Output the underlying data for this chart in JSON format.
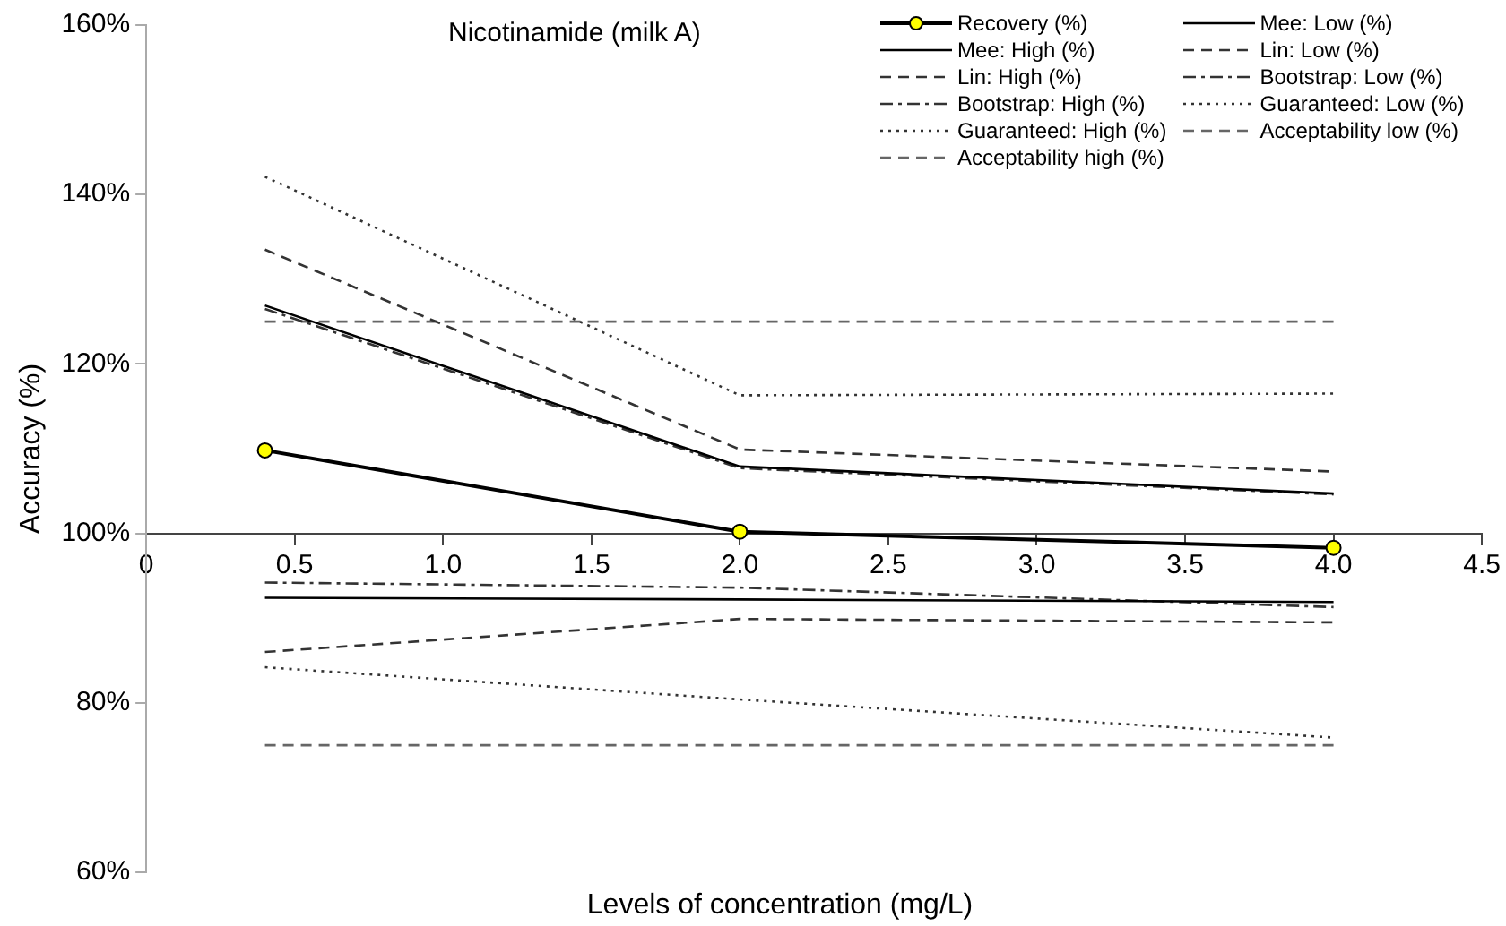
{
  "chart_data": {
    "type": "line",
    "title": "Nicotinamide (milk A)",
    "xlabel": "Levels of concentration (mg/L)",
    "ylabel": "Accuracy (%)",
    "x": [
      0.4,
      2.0,
      4.0
    ],
    "xlim": [
      0,
      4.5
    ],
    "xticks": [
      0,
      0.5,
      {
        "value": 1,
        "label": "1.0"
      },
      1.5,
      {
        "value": 2,
        "label": "2.0"
      },
      2.5,
      {
        "value": 3,
        "label": "3.0"
      },
      3.5,
      {
        "value": 4,
        "label": "4.0"
      },
      4.5
    ],
    "ylim": [
      60,
      160
    ],
    "yticks": [
      {
        "value": 60,
        "label": "60%"
      },
      {
        "value": 80,
        "label": "80%"
      },
      {
        "value": 100,
        "label": "100%"
      },
      {
        "value": 120,
        "label": "120%"
      },
      {
        "value": 140,
        "label": "140%"
      },
      {
        "value": 160,
        "label": "160%"
      }
    ],
    "grid": false,
    "legend": "top right",
    "series": [
      {
        "name": "Recovery (%)",
        "color": "#000000",
        "marker": "circle",
        "colors": [
          "#ffff00",
          "#ffff00",
          "#ffff00"
        ],
        "line_style": "solid",
        "values": [
          109.8,
          100.2,
          98.3
        ]
      },
      {
        "name": "Mee: Low (%)",
        "color": "#000000",
        "line_style": "solid",
        "values": [
          92.4,
          92.2,
          91.9
        ]
      },
      {
        "name": "Mee: High (%)",
        "color": "#000000",
        "line_style": "solid",
        "values": [
          126.9,
          107.9,
          104.7
        ]
      },
      {
        "name": "Lin: Low (%)",
        "color": "#333333",
        "line_style": "dashed",
        "values": [
          86.0,
          89.9,
          89.5
        ]
      },
      {
        "name": "Lin: High (%)",
        "color": "#333333",
        "line_style": "dashed",
        "values": [
          133.5,
          109.9,
          107.3
        ]
      },
      {
        "name": "Bootstrap: Low (%)",
        "color": "#333333",
        "line_style": "dashdot",
        "values": [
          94.2,
          93.6,
          91.3
        ]
      },
      {
        "name": "Bootstrap: High (%)",
        "color": "#333333",
        "line_style": "dashdot",
        "values": [
          126.5,
          107.7,
          104.6
        ]
      },
      {
        "name": "Guaranteed: Low (%)",
        "color": "#333333",
        "line_style": "dotted",
        "values": [
          84.2,
          80.4,
          75.9
        ]
      },
      {
        "name": "Guaranteed: High (%)",
        "color": "#333333",
        "line_style": "dotted",
        "values": [
          142.1,
          116.3,
          116.5
        ]
      },
      {
        "name": "Acceptability low (%)",
        "color": "#666666",
        "line_style": "dashed",
        "values": [
          75,
          75,
          75
        ]
      },
      {
        "name": "Acceptability high (%)",
        "color": "#666666",
        "line_style": "dashed",
        "values": [
          125,
          125,
          125
        ]
      }
    ]
  }
}
